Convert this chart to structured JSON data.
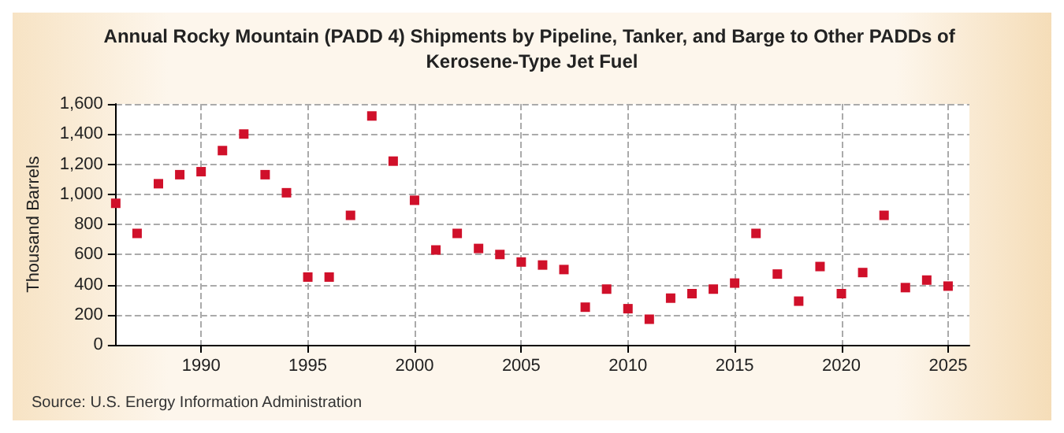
{
  "chart_data": {
    "type": "scatter",
    "title": "Annual Rocky Mountain (PADD 4) Shipments by Pipeline, Tanker, and Barge to Other PADDs of Kerosene-Type Jet Fuel",
    "ylabel": "Thousand Barrels",
    "annotations": [
      "Source: U.S. Energy Information Administration"
    ],
    "x": [
      1986,
      1987,
      1988,
      1989,
      1990,
      1991,
      1992,
      1993,
      1994,
      1995,
      1996,
      1997,
      1998,
      1999,
      2000,
      2001,
      2002,
      2003,
      2004,
      2005,
      2006,
      2007,
      2008,
      2009,
      2010,
      2011,
      2012,
      2013,
      2014,
      2015,
      2016,
      2017,
      2018,
      2019,
      2020,
      2021,
      2022,
      2023,
      2024,
      2025
    ],
    "series": [
      {
        "color": "#d0102a",
        "values": [
          940,
          740,
          1070,
          1130,
          1150,
          1290,
          1400,
          1130,
          1010,
          450,
          450,
          860,
          1520,
          1220,
          960,
          630,
          740,
          640,
          600,
          550,
          530,
          500,
          250,
          370,
          240,
          170,
          310,
          340,
          370,
          410,
          740,
          470,
          290,
          520,
          340,
          480,
          860,
          380,
          430,
          390
        ]
      }
    ],
    "xlim": [
      1986,
      2026
    ],
    "xticks": [
      1990,
      1995,
      2000,
      2005,
      2010,
      2015,
      2020,
      2025
    ],
    "ylim": [
      0,
      1600
    ],
    "yticks": [
      0,
      200,
      400,
      600,
      800,
      {
        "value": 1000,
        "label": "1,000"
      },
      {
        "value": 1200,
        "label": "1,200"
      },
      {
        "value": 1400,
        "label": "1,400"
      },
      {
        "value": 1600,
        "label": "1,600"
      }
    ],
    "grid": true,
    "marker": "square"
  }
}
